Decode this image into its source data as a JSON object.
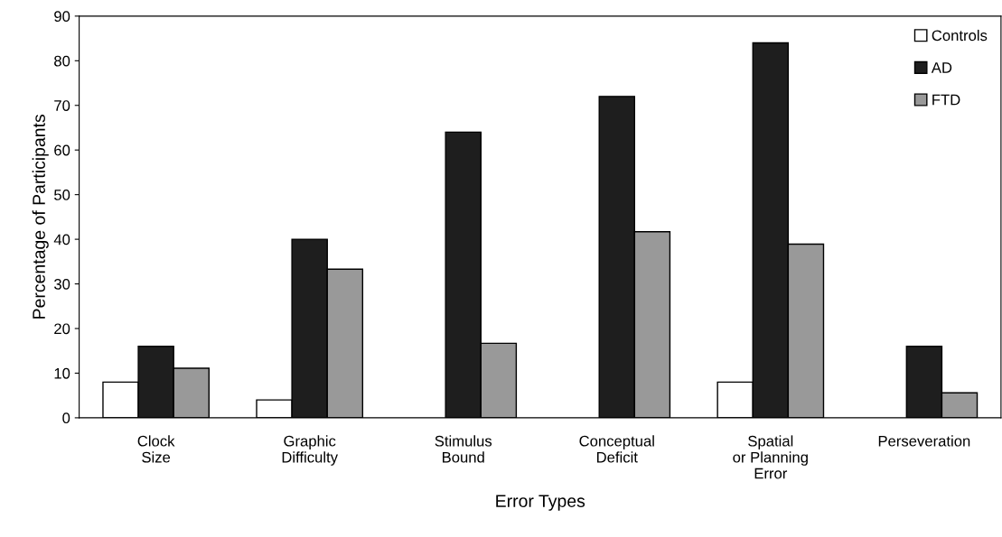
{
  "chart_data": {
    "type": "bar",
    "xlabel": "Error Types",
    "ylabel": "Percentage of Participants",
    "categories": [
      "Clock\nSize",
      "Graphic\nDifficulty",
      "Stimulus\nBound",
      "Conceptual\nDeficit",
      "Spatial\nor Planning\nError",
      "Perseveration"
    ],
    "series": [
      {
        "name": "Controls",
        "color": "#ffffff",
        "values": [
          8,
          4,
          0,
          0,
          8,
          0
        ]
      },
      {
        "name": "AD",
        "color": "#1e1e1e",
        "values": [
          16,
          40,
          64,
          72,
          84,
          16
        ]
      },
      {
        "name": "FTD",
        "color": "#999999",
        "values": [
          11.1,
          33.3,
          16.7,
          41.7,
          38.9,
          5.6
        ]
      }
    ],
    "ylim": [
      0,
      90
    ],
    "yticks": [
      0,
      10,
      20,
      30,
      40,
      50,
      60,
      70,
      80,
      90
    ],
    "grid": false,
    "legend": "top right"
  }
}
